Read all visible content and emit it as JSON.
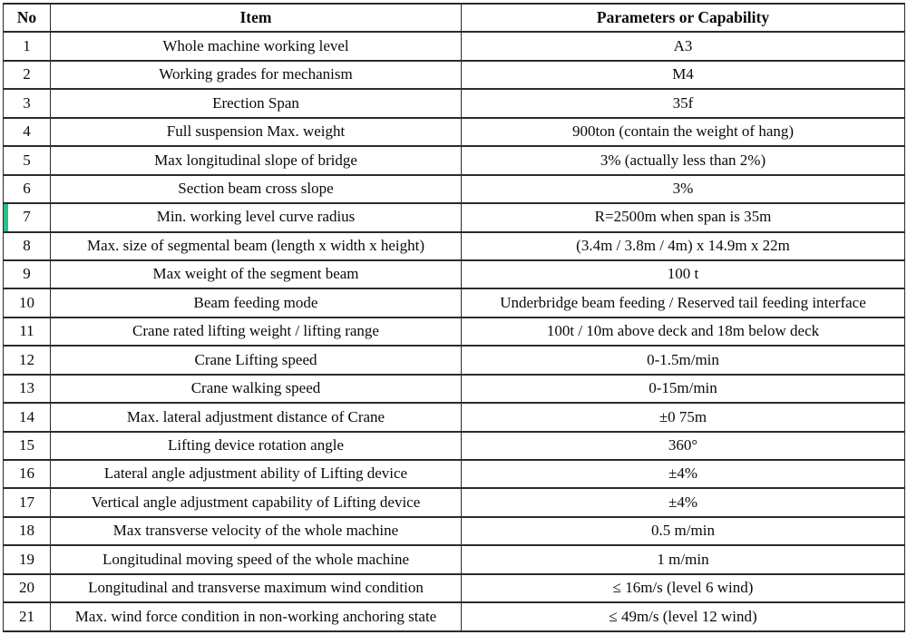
{
  "table": {
    "headers": {
      "no": "No",
      "item": "Item",
      "params": "Parameters or Capability"
    },
    "highlighted_row_no": "7",
    "rows": [
      {
        "no": "1",
        "item": "Whole machine working level",
        "value": "A3"
      },
      {
        "no": "2",
        "item": "Working grades for mechanism",
        "value": "M4"
      },
      {
        "no": "3",
        "item": "Erection Span",
        "value": "35f"
      },
      {
        "no": "4",
        "item": "Full suspension Max. weight",
        "value": "900ton (contain the weight of hang)"
      },
      {
        "no": "5",
        "item": "Max longitudinal slope of bridge",
        "value": "3% (actually less than 2%)"
      },
      {
        "no": "6",
        "item": "Section beam cross slope",
        "value": "3%"
      },
      {
        "no": "7",
        "item": "Min. working level curve radius",
        "value": "R=2500m when span is 35m"
      },
      {
        "no": "8",
        "item": "Max. size of segmental beam (length x width x height)",
        "value": "(3.4m / 3.8m / 4m)  x 14.9m x 22m"
      },
      {
        "no": "9",
        "item": "Max weight of the segment beam",
        "value": "100 t"
      },
      {
        "no": "10",
        "item": "Beam feeding mode",
        "value": "Underbridge beam feeding / Reserved tail feeding interface"
      },
      {
        "no": "11",
        "item": "Crane rated lifting weight / lifting range",
        "value": "100t / 10m above deck and 18m below deck"
      },
      {
        "no": "12",
        "item": "Crane Lifting speed",
        "value": "0-1.5m/min"
      },
      {
        "no": "13",
        "item": "Crane walking speed",
        "value": "0-15m/min"
      },
      {
        "no": "14",
        "item": "Max. lateral adjustment distance of Crane",
        "value": "±0 75m"
      },
      {
        "no": "15",
        "item": "Lifting device rotation angle",
        "value": "360°"
      },
      {
        "no": "16",
        "item": "Lateral angle adjustment ability of Lifting device",
        "value": "±4%"
      },
      {
        "no": "17",
        "item": "Vertical angle adjustment capability of Lifting device",
        "value": "±4%"
      },
      {
        "no": "18",
        "item": "Max transverse velocity of the whole machine",
        "value": "0.5 m/min"
      },
      {
        "no": "19",
        "item": "Longitudinal moving speed of the whole machine",
        "value": "1 m/min"
      },
      {
        "no": "20",
        "item": "Longitudinal and transverse maximum wind condition",
        "value": "≤ 16m/s (level 6 wind)"
      },
      {
        "no": "21",
        "item": "Max. wind force condition in non-working anchoring state",
        "value": "≤ 49m/s (level 12 wind)"
      }
    ]
  },
  "colors": {
    "border": "#2b2b2b",
    "highlight": "#2bc186",
    "background": "#ffffff",
    "text": "#0a0a0a"
  }
}
